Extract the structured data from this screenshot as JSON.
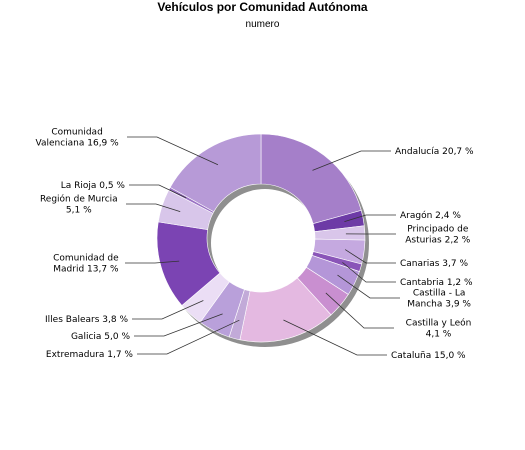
{
  "chart_data": {
    "type": "pie",
    "donut": true,
    "title": "Vehículos por Comunidad Autónoma",
    "subtitle": "numero",
    "legend": "none",
    "slices": [
      {
        "name": "Andalucía",
        "value": 20.7,
        "label": [
          "Andalucía 20,7 %"
        ],
        "color": "#a57fc9",
        "side": "right"
      },
      {
        "name": "Aragón",
        "value": 2.4,
        "label": [
          "Aragón 2,4 %"
        ],
        "color": "#6d3ba6",
        "side": "right"
      },
      {
        "name": "Principado de Asturias",
        "value": 2.2,
        "label": [
          "Principado de",
          "Asturias 2,2 %"
        ],
        "color": "#d9c6ea",
        "side": "right"
      },
      {
        "name": "Canarias",
        "value": 3.7,
        "label": [
          "Canarias 3,7 %"
        ],
        "color": "#c5a9e0",
        "side": "right"
      },
      {
        "name": "Cantabria",
        "value": 1.2,
        "label": [
          "Cantabria 1,2 %"
        ],
        "color": "#8a55b8",
        "side": "right"
      },
      {
        "name": "Castilla - La Mancha",
        "value": 3.9,
        "label": [
          "Castilla - La",
          "Mancha 3,9 %"
        ],
        "color": "#b496d8",
        "side": "right"
      },
      {
        "name": "Castilla y León",
        "value": 4.1,
        "label": [
          "Castilla y León",
          "4,1 %"
        ],
        "color": "#c98fd0",
        "side": "right"
      },
      {
        "name": "Cataluña",
        "value": 15.0,
        "label": [
          "Cataluña 15,0 %"
        ],
        "color": "#e4b9e1",
        "side": "right"
      },
      {
        "name": "Extremadura",
        "value": 1.7,
        "label": [
          "Extremadura 1,7 %"
        ],
        "color": "#c2aad8",
        "side": "left"
      },
      {
        "name": "Galicia",
        "value": 5.0,
        "label": [
          "Galicia 5,0 %"
        ],
        "color": "#b9a0da",
        "side": "left"
      },
      {
        "name": "Illes Balears",
        "value": 3.8,
        "label": [
          "Illes Balears 3,8 %"
        ],
        "color": "#ebdef5",
        "side": "left"
      },
      {
        "name": "Comunidad de Madrid",
        "value": 13.7,
        "label": [
          "Comunidad de",
          "Madrid 13,7 %"
        ],
        "color": "#7b44b3",
        "side": "left"
      },
      {
        "name": "Región de Murcia",
        "value": 5.1,
        "label": [
          "Región de Murcia",
          "5,1 %"
        ],
        "color": "#d8c6ea",
        "side": "left"
      },
      {
        "name": "La Rioja",
        "value": 0.5,
        "label": [
          "La Rioja 0,5 %"
        ],
        "color": "#9a72c4",
        "side": "left"
      },
      {
        "name": "Comunidad Valenciana",
        "value": 16.9,
        "label": [
          "Comunidad",
          "Valenciana 16,9 %"
        ],
        "color": "#b79ad7",
        "side": "left"
      }
    ]
  }
}
